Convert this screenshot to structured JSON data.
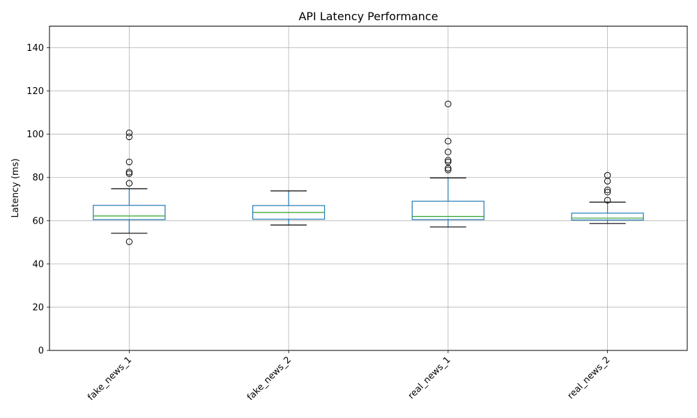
{
  "chart_data": {
    "type": "box",
    "title": "API Latency Performance",
    "xlabel": "",
    "ylabel": "Latency (ms)",
    "ylim": [
      0,
      150
    ],
    "yticks": [
      0,
      20,
      40,
      60,
      80,
      100,
      120,
      140
    ],
    "grid": true,
    "categories": [
      "fake_news_1",
      "fake_news_2",
      "real_news_1",
      "real_news_2"
    ],
    "boxes": [
      {
        "category": "fake_news_1",
        "whisker_low": 54.2,
        "q1": 60.5,
        "median": 62.2,
        "q3": 67.1,
        "whisker_high": 74.8,
        "outliers": [
          50.3,
          77.3,
          81.8,
          82.5,
          87.2,
          98.8,
          100.6
        ]
      },
      {
        "category": "fake_news_2",
        "whisker_low": 58.0,
        "q1": 60.7,
        "median": 63.8,
        "q3": 67.0,
        "whisker_high": 73.8,
        "outliers": []
      },
      {
        "category": "real_news_1",
        "whisker_low": 57.1,
        "q1": 60.5,
        "median": 62.0,
        "q3": 69.0,
        "whisker_high": 79.8,
        "outliers": [
          83.5,
          84.3,
          87.2,
          88.0,
          91.8,
          96.8,
          114.0
        ]
      },
      {
        "category": "real_news_2",
        "whisker_low": 58.7,
        "q1": 60.3,
        "median": 61.2,
        "q3": 63.5,
        "whisker_high": 68.6,
        "outliers": [
          69.5,
          73.2,
          74.2,
          78.3,
          81.0
        ]
      }
    ],
    "colors": {
      "box": "#1f77b4",
      "median": "#2ca02c",
      "whisker_cap": "#000000",
      "grid": "#b0b0b0"
    }
  }
}
